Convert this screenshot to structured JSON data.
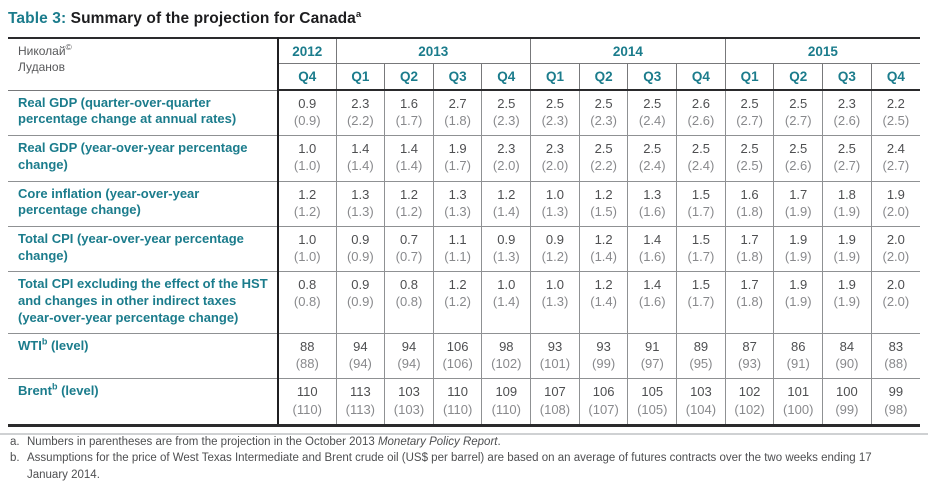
{
  "page": {
    "title": {
      "label": "Table 3:",
      "text": " Summary of the projection for Canada",
      "superscript": "a"
    }
  },
  "watermark": {
    "name": "Николай",
    "sup": "©",
    "surname": "Луданов"
  },
  "table": {
    "year_groups": [
      {
        "year": "2012",
        "quarters": [
          "Q4"
        ]
      },
      {
        "year": "2013",
        "quarters": [
          "Q1",
          "Q2",
          "Q3",
          "Q4"
        ]
      },
      {
        "year": "2014",
        "quarters": [
          "Q1",
          "Q2",
          "Q3",
          "Q4"
        ]
      },
      {
        "year": "2015",
        "quarters": [
          "Q1",
          "Q2",
          "Q3",
          "Q4"
        ]
      }
    ],
    "rows": [
      {
        "label_pre": "Real GDP (quarter-over-quarter percentage change at annual rates)",
        "label_sup": "",
        "label_post": "",
        "values": [
          "0.9",
          "2.3",
          "1.6",
          "2.7",
          "2.5",
          "2.5",
          "2.5",
          "2.5",
          "2.6",
          "2.5",
          "2.5",
          "2.3",
          "2.2"
        ],
        "parens": [
          "(0.9)",
          "(2.2)",
          "(1.7)",
          "(1.8)",
          "(2.3)",
          "(2.3)",
          "(2.3)",
          "(2.4)",
          "(2.6)",
          "(2.7)",
          "(2.7)",
          "(2.6)",
          "(2.5)"
        ]
      },
      {
        "label_pre": "Real GDP (year-over-year percentage change)",
        "label_sup": "",
        "label_post": "",
        "values": [
          "1.0",
          "1.4",
          "1.4",
          "1.9",
          "2.3",
          "2.3",
          "2.5",
          "2.5",
          "2.5",
          "2.5",
          "2.5",
          "2.5",
          "2.4"
        ],
        "parens": [
          "(1.0)",
          "(1.4)",
          "(1.4)",
          "(1.7)",
          "(2.0)",
          "(2.0)",
          "(2.2)",
          "(2.4)",
          "(2.4)",
          "(2.5)",
          "(2.6)",
          "(2.7)",
          "(2.7)"
        ]
      },
      {
        "label_pre": "Core inflation (year-over-year percentage change)",
        "label_sup": "",
        "label_post": "",
        "values": [
          "1.2",
          "1.3",
          "1.2",
          "1.3",
          "1.2",
          "1.0",
          "1.2",
          "1.3",
          "1.5",
          "1.6",
          "1.7",
          "1.8",
          "1.9"
        ],
        "parens": [
          "(1.2)",
          "(1.3)",
          "(1.2)",
          "(1.3)",
          "(1.4)",
          "(1.3)",
          "(1.5)",
          "(1.6)",
          "(1.7)",
          "(1.8)",
          "(1.9)",
          "(1.9)",
          "(2.0)"
        ]
      },
      {
        "label_pre": "Total CPI (year-over-year percentage change)",
        "label_sup": "",
        "label_post": "",
        "values": [
          "1.0",
          "0.9",
          "0.7",
          "1.1",
          "0.9",
          "0.9",
          "1.2",
          "1.4",
          "1.5",
          "1.7",
          "1.9",
          "1.9",
          "2.0"
        ],
        "parens": [
          "(1.0)",
          "(0.9)",
          "(0.7)",
          "(1.1)",
          "(1.3)",
          "(1.2)",
          "(1.4)",
          "(1.6)",
          "(1.7)",
          "(1.8)",
          "(1.9)",
          "(1.9)",
          "(2.0)"
        ]
      },
      {
        "label_pre": "Total CPI excluding the effect of the HST and changes in other indirect taxes (year-over-year percentage change)",
        "label_sup": "",
        "label_post": "",
        "values": [
          "0.8",
          "0.9",
          "0.8",
          "1.2",
          "1.0",
          "1.0",
          "1.2",
          "1.4",
          "1.5",
          "1.7",
          "1.9",
          "1.9",
          "2.0"
        ],
        "parens": [
          "(0.8)",
          "(0.9)",
          "(0.8)",
          "(1.2)",
          "(1.4)",
          "(1.3)",
          "(1.4)",
          "(1.6)",
          "(1.7)",
          "(1.8)",
          "(1.9)",
          "(1.9)",
          "(2.0)"
        ]
      },
      {
        "label_pre": "WTI",
        "label_sup": "b",
        "label_post": " (level)",
        "values": [
          "88",
          "94",
          "94",
          "106",
          "98",
          "93",
          "93",
          "91",
          "89",
          "87",
          "86",
          "84",
          "83"
        ],
        "parens": [
          "(88)",
          "(94)",
          "(94)",
          "(106)",
          "(102)",
          "(101)",
          "(99)",
          "(97)",
          "(95)",
          "(93)",
          "(91)",
          "(90)",
          "(88)"
        ]
      },
      {
        "label_pre": "Brent",
        "label_sup": "b",
        "label_post": " (level)",
        "values": [
          "110",
          "113",
          "103",
          "110",
          "109",
          "107",
          "106",
          "105",
          "103",
          "102",
          "101",
          "100",
          "99"
        ],
        "parens": [
          "(110)",
          "(113)",
          "(103)",
          "(110)",
          "(110)",
          "(108)",
          "(107)",
          "(105)",
          "(104)",
          "(102)",
          "(100)",
          "(99)",
          "(98)"
        ]
      }
    ]
  },
  "footnotes": [
    {
      "marker": "a.",
      "segments": [
        {
          "text": "Numbers in parentheses are from the projection in the October 2013 ",
          "italic": false
        },
        {
          "text": "Monetary Policy Report",
          "italic": true
        },
        {
          "text": ".",
          "italic": false
        }
      ]
    },
    {
      "marker": "b.",
      "segments": [
        {
          "text": "Assumptions for the price of West Texas Intermediate and Brent crude oil (US$ per barrel) are based on an average of futures contracts over the two weeks ending 17 January 2014.",
          "italic": false
        }
      ]
    }
  ],
  "colors": {
    "accent_teal": "#1b7c8c",
    "rule_dark": "#2a2a2c",
    "rule_gray": "#8f9193",
    "value_main": "#4e4f51",
    "value_paren": "#88898c"
  }
}
